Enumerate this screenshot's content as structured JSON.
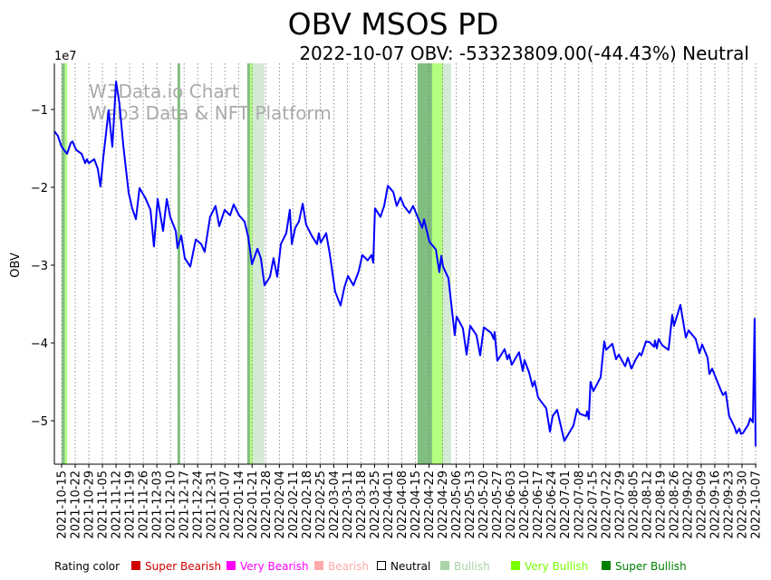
{
  "chart_data": {
    "type": "line",
    "title": "OBV MSOS PD",
    "subtitle": "2022-10-07 OBV: -53323809.00(-44.43%) Neutral",
    "ylabel": "OBV",
    "y_scale_label": "1e7",
    "y_unit": "1e7",
    "ylim": [
      -5.56,
      -0.41
    ],
    "yticks": [
      -1,
      -2,
      -3,
      -4,
      -5
    ],
    "ytick_labels": [
      "−1",
      "−2",
      "−3",
      "−4",
      "−5"
    ],
    "x_start_date": "2021-10-15",
    "x_unit": "days since 2021-10-15",
    "xlim": [
      -3.7,
      357.5
    ],
    "xtick_labels": [
      "2021-10-15",
      "2021-10-22",
      "2021-10-29",
      "2021-11-05",
      "2021-11-12",
      "2021-11-19",
      "2021-11-26",
      "2021-12-03",
      "2021-12-10",
      "2021-12-17",
      "2021-12-24",
      "2021-12-31",
      "2022-01-07",
      "2022-01-14",
      "2022-01-21",
      "2022-01-28",
      "2022-02-04",
      "2022-02-11",
      "2022-02-18",
      "2022-02-25",
      "2022-03-04",
      "2022-03-11",
      "2022-03-18",
      "2022-03-25",
      "2022-04-01",
      "2022-04-08",
      "2022-04-15",
      "2022-04-22",
      "2022-04-29",
      "2022-05-06",
      "2022-05-13",
      "2022-05-20",
      "2022-05-27",
      "2022-06-03",
      "2022-06-10",
      "2022-06-17",
      "2022-06-24",
      "2022-07-01",
      "2022-07-08",
      "2022-07-15",
      "2022-07-22",
      "2022-07-29",
      "2022-08-05",
      "2022-08-12",
      "2022-08-19",
      "2022-08-26",
      "2022-09-02",
      "2022-09-09",
      "2022-09-16",
      "2022-09-23",
      "2022-09-30",
      "2022-10-07"
    ],
    "grid": "vertical dotted",
    "watermark": [
      "W3Data.io Chart",
      "Web3 Data & NFT Platform"
    ],
    "series": [
      {
        "name": "OBV",
        "color": "#0000ff",
        "points": [
          [
            -3.7,
            -1.28
          ],
          [
            -1.9,
            -1.34
          ],
          [
            0,
            -1.48
          ],
          [
            2.8,
            -1.57
          ],
          [
            4.7,
            -1.43
          ],
          [
            5.6,
            -1.41
          ],
          [
            7.5,
            -1.52
          ],
          [
            10.3,
            -1.57
          ],
          [
            12.1,
            -1.69
          ],
          [
            13.0,
            -1.64
          ],
          [
            14.0,
            -1.69
          ],
          [
            16.8,
            -1.64
          ],
          [
            18.6,
            -1.76
          ],
          [
            20.0,
            -1.99
          ],
          [
            21.4,
            -1.63
          ],
          [
            24.2,
            -1.01
          ],
          [
            26.1,
            -1.48
          ],
          [
            28.0,
            -0.64
          ],
          [
            29.8,
            -0.93
          ],
          [
            31.7,
            -1.45
          ],
          [
            32.6,
            -1.66
          ],
          [
            34.5,
            -2.07
          ],
          [
            36.3,
            -2.27
          ],
          [
            38.2,
            -2.41
          ],
          [
            40.1,
            -2.01
          ],
          [
            42.9,
            -2.13
          ],
          [
            45.7,
            -2.29
          ],
          [
            47.5,
            -2.76
          ],
          [
            49.4,
            -2.15
          ],
          [
            52.2,
            -2.56
          ],
          [
            54.1,
            -2.15
          ],
          [
            55.9,
            -2.38
          ],
          [
            58.7,
            -2.56
          ],
          [
            59.6,
            -2.78
          ],
          [
            61.5,
            -2.62
          ],
          [
            63.4,
            -2.91
          ],
          [
            66.2,
            -3.02
          ],
          [
            69.0,
            -2.67
          ],
          [
            71.8,
            -2.73
          ],
          [
            73.6,
            -2.83
          ],
          [
            76.4,
            -2.38
          ],
          [
            79.2,
            -2.24
          ],
          [
            81.1,
            -2.5
          ],
          [
            83.9,
            -2.29
          ],
          [
            86.7,
            -2.36
          ],
          [
            88.5,
            -2.22
          ],
          [
            91.3,
            -2.36
          ],
          [
            94.1,
            -2.44
          ],
          [
            96.0,
            -2.64
          ],
          [
            97.9,
            -2.99
          ],
          [
            100.7,
            -2.79
          ],
          [
            102.5,
            -2.91
          ],
          [
            104.4,
            -3.26
          ],
          [
            107.2,
            -3.15
          ],
          [
            109.0,
            -2.91
          ],
          [
            110.9,
            -3.15
          ],
          [
            112.8,
            -2.73
          ],
          [
            115.6,
            -2.59
          ],
          [
            117.4,
            -2.29
          ],
          [
            118.4,
            -2.73
          ],
          [
            120.2,
            -2.52
          ],
          [
            122.1,
            -2.44
          ],
          [
            124.0,
            -2.21
          ],
          [
            125.8,
            -2.48
          ],
          [
            128.6,
            -2.62
          ],
          [
            131.4,
            -2.73
          ],
          [
            132.3,
            -2.59
          ],
          [
            133.3,
            -2.71
          ],
          [
            136.1,
            -2.59
          ],
          [
            137.9,
            -2.85
          ],
          [
            140.7,
            -3.34
          ],
          [
            143.5,
            -3.52
          ],
          [
            145.4,
            -3.29
          ],
          [
            147.3,
            -3.14
          ],
          [
            150.1,
            -3.26
          ],
          [
            152.8,
            -3.08
          ],
          [
            154.7,
            -2.87
          ],
          [
            157.5,
            -2.94
          ],
          [
            159.4,
            -2.87
          ],
          [
            160.3,
            -2.97
          ],
          [
            161.2,
            -2.27
          ],
          [
            164.0,
            -2.38
          ],
          [
            165.9,
            -2.24
          ],
          [
            167.8,
            -1.98
          ],
          [
            170.6,
            -2.06
          ],
          [
            172.4,
            -2.24
          ],
          [
            174.3,
            -2.13
          ],
          [
            176.1,
            -2.24
          ],
          [
            178.9,
            -2.33
          ],
          [
            180.8,
            -2.24
          ],
          [
            185.5,
            -2.52
          ],
          [
            186.4,
            -2.41
          ],
          [
            189.2,
            -2.7
          ],
          [
            192.5,
            -2.8
          ],
          [
            194.3,
            -3.09
          ],
          [
            195.3,
            -2.88
          ],
          [
            196.2,
            -3.02
          ],
          [
            199.0,
            -3.17
          ],
          [
            202.2,
            -3.9
          ],
          [
            203.2,
            -3.66
          ],
          [
            206.4,
            -3.81
          ],
          [
            208.3,
            -4.15
          ],
          [
            210.2,
            -3.78
          ],
          [
            213.4,
            -3.9
          ],
          [
            215.3,
            -4.16
          ],
          [
            217.2,
            -3.8
          ],
          [
            220.9,
            -3.87
          ],
          [
            222.3,
            -3.95
          ],
          [
            222.7,
            -3.86
          ],
          [
            224.1,
            -4.23
          ],
          [
            227.9,
            -4.08
          ],
          [
            229.3,
            -4.21
          ],
          [
            230.2,
            -4.15
          ],
          [
            231.6,
            -4.28
          ],
          [
            235.3,
            -4.12
          ],
          [
            237.2,
            -4.36
          ],
          [
            238.1,
            -4.22
          ],
          [
            240.5,
            -4.38
          ],
          [
            242.3,
            -4.56
          ],
          [
            243.3,
            -4.49
          ],
          [
            245.1,
            -4.7
          ],
          [
            249.3,
            -4.84
          ],
          [
            251.2,
            -5.14
          ],
          [
            252.6,
            -4.94
          ],
          [
            254.9,
            -4.86
          ],
          [
            258.6,
            -5.26
          ],
          [
            263.3,
            -5.06
          ],
          [
            265.2,
            -4.85
          ],
          [
            266.6,
            -4.91
          ],
          [
            269.8,
            -4.94
          ],
          [
            270.3,
            -4.88
          ],
          [
            271.2,
            -4.98
          ],
          [
            272.1,
            -4.5
          ],
          [
            273.5,
            -4.62
          ],
          [
            277.3,
            -4.44
          ],
          [
            279.1,
            -3.98
          ],
          [
            280.1,
            -4.09
          ],
          [
            283.3,
            -4.01
          ],
          [
            285.2,
            -4.21
          ],
          [
            286.6,
            -4.15
          ],
          [
            289.9,
            -4.3
          ],
          [
            291.3,
            -4.19
          ],
          [
            293.1,
            -4.33
          ],
          [
            295.4,
            -4.21
          ],
          [
            297.3,
            -4.13
          ],
          [
            298.2,
            -4.16
          ],
          [
            300.6,
            -3.98
          ],
          [
            302.4,
            -3.99
          ],
          [
            304.8,
            -4.05
          ],
          [
            305.2,
            -3.97
          ],
          [
            306.2,
            -4.07
          ],
          [
            307.1,
            -3.95
          ],
          [
            309.0,
            -4.03
          ],
          [
            312.2,
            -4.09
          ],
          [
            314.1,
            -3.64
          ],
          [
            315.0,
            -3.78
          ],
          [
            318.3,
            -3.51
          ],
          [
            321.1,
            -3.93
          ],
          [
            322.5,
            -3.84
          ],
          [
            326.2,
            -3.95
          ],
          [
            328.1,
            -4.13
          ],
          [
            329.5,
            -4.02
          ],
          [
            332.3,
            -4.19
          ],
          [
            333.2,
            -4.4
          ],
          [
            334.6,
            -4.33
          ],
          [
            338.8,
            -4.59
          ],
          [
            340.2,
            -4.67
          ],
          [
            341.6,
            -4.63
          ],
          [
            343.4,
            -4.94
          ],
          [
            346.2,
            -5.08
          ],
          [
            347.2,
            -5.16
          ],
          [
            348.6,
            -5.1
          ],
          [
            349.5,
            -5.17
          ],
          [
            350.4,
            -5.16
          ],
          [
            353.2,
            -5.05
          ],
          [
            354.2,
            -4.97
          ],
          [
            355.6,
            -5.02
          ],
          [
            356.5,
            -3.69
          ],
          [
            357.0,
            -5.33
          ]
        ]
      }
    ],
    "rating_bands": [
      {
        "rating": "Super Bullish",
        "from": 0.1,
        "to": 1.7
      },
      {
        "rating": "Very Bullish",
        "from": 1.7,
        "to": 2.9
      },
      {
        "rating": "Super Bullish",
        "from": 59.6,
        "to": 61.0
      },
      {
        "rating": "Super Bullish",
        "from": 95.5,
        "to": 96.9
      },
      {
        "rating": "Very Bullish",
        "from": 96.9,
        "to": 98.3
      },
      {
        "rating": "Bullish",
        "from": 98.3,
        "to": 104.4
      },
      {
        "rating": "Super Bullish",
        "from": 183.1,
        "to": 190.6
      },
      {
        "rating": "Very Bullish",
        "from": 190.6,
        "to": 196.2
      },
      {
        "rating": "Bullish",
        "from": 196.2,
        "to": 200.4
      }
    ],
    "band_colors": {
      "Super Bullish": "#80bf80",
      "Very Bullish": "#b3ff80",
      "Bullish": "#d5ead5"
    },
    "legend": {
      "title": "Rating color",
      "placement": "bottom",
      "items": [
        {
          "label": "Super Bearish",
          "color": "#d00000"
        },
        {
          "label": "Very Bearish",
          "color": "#ff00ff"
        },
        {
          "label": "Bearish",
          "color": "#ffaaaa"
        },
        {
          "label": "Neutral",
          "color": "#000000",
          "hollow": true
        },
        {
          "label": "Bullish",
          "color": "#aad4aa"
        },
        {
          "label": "Very Bullish",
          "color": "#77ff00"
        },
        {
          "label": "Super Bullish",
          "color": "#008000"
        }
      ]
    }
  }
}
